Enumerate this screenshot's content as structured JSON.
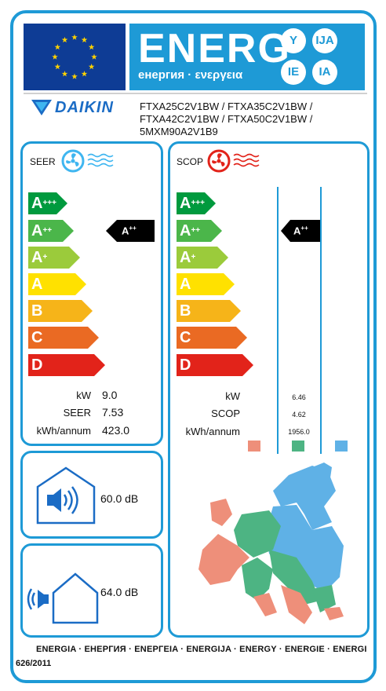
{
  "header": {
    "energ_word": "ENERG",
    "energ_subtitle": "енергия · ενεργεια",
    "lang_badges": [
      "Y",
      "IJA",
      "IE",
      "IA"
    ],
    "brand": "DAIKIN",
    "model_lines": [
      "FTXA25C2V1BW / FTXA35C2V1BW /",
      "FTXA42C2V1BW / FTXA50C2V1BW /",
      "5MXM90A2V1B9"
    ]
  },
  "colors": {
    "frame": "#1e9ad6",
    "flag": "#0e3c95",
    "star": "#ffd200",
    "class_colors": [
      "#009a3e",
      "#4bb64a",
      "#9bcb3b",
      "#ffe100",
      "#f6b419",
      "#ea6a23",
      "#e2231a"
    ],
    "zone_warm": "#ee8f7a",
    "zone_average": "#4db483",
    "zone_cold": "#5fb1e6"
  },
  "cooling": {
    "title": "SEER",
    "icon": "cooling-fan-icon",
    "classes": [
      "A",
      "A",
      "A",
      "A",
      "B",
      "C",
      "D"
    ],
    "class_sups": [
      "+++",
      "++",
      "+",
      "",
      "",
      "",
      ""
    ],
    "rating": {
      "letter": "A",
      "sup": "++"
    },
    "rows": [
      {
        "label": "kW",
        "value": "9.0"
      },
      {
        "label": "SEER",
        "value": "7.53"
      },
      {
        "label": "kWh/annum",
        "value": "423.0"
      }
    ]
  },
  "heating": {
    "title": "SCOP",
    "icon": "heating-fan-icon",
    "classes": [
      "A",
      "A",
      "A",
      "A",
      "B",
      "C",
      "D"
    ],
    "class_sups": [
      "+++",
      "++",
      "+",
      "",
      "",
      "",
      ""
    ],
    "rating": {
      "letter": "A",
      "sup": "++"
    },
    "rows": [
      {
        "label": "kW",
        "value": "6.46"
      },
      {
        "label": "SCOP",
        "value": "4.62"
      },
      {
        "label": "kWh/annum",
        "value": "1956.0"
      }
    ]
  },
  "noise": {
    "indoor_value": "60.0 dB",
    "outdoor_value": "64.0 dB",
    "indoor_icon": "indoor-speaker-icon",
    "outdoor_icon": "outdoor-sound-house-icon"
  },
  "footer": {
    "languages": "ENERGIA · ЕНЕРГИЯ · ENEPГEIA · ENERGIJA · ENERGY · ENERGIE · ENERGI",
    "regulation": "626/2011"
  }
}
